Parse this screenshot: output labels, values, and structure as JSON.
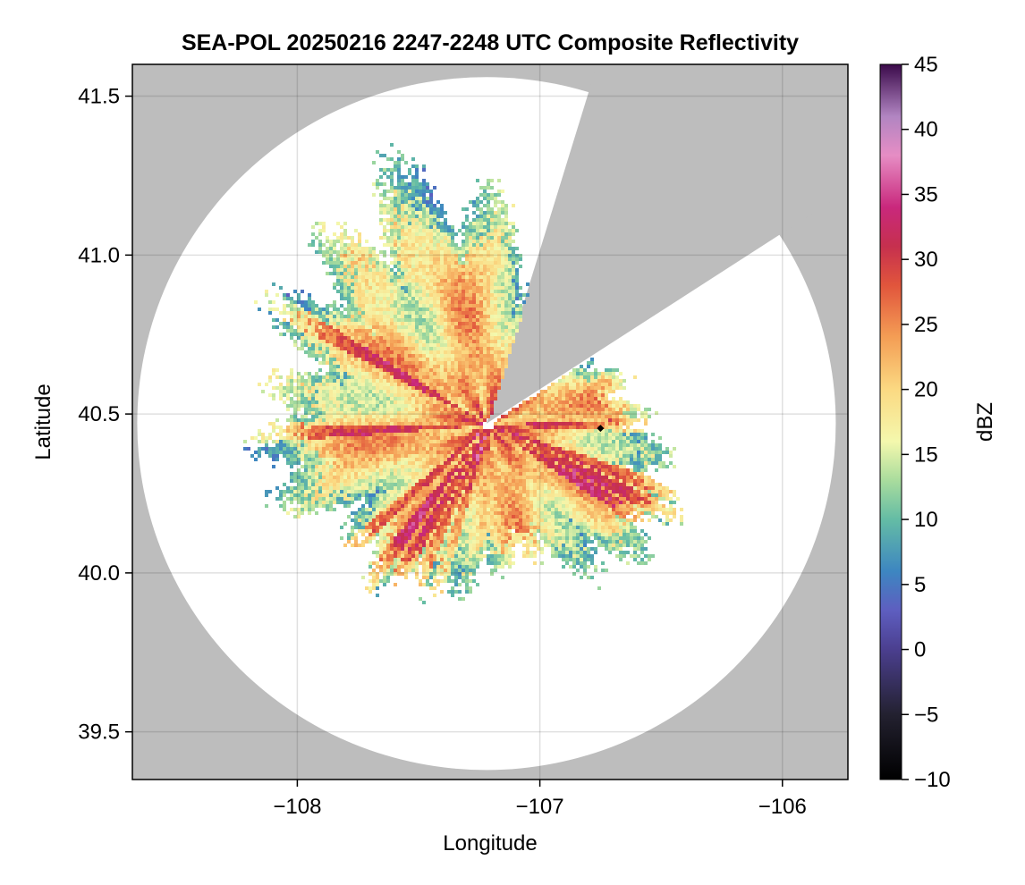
{
  "chart_data": {
    "type": "heatmap",
    "title": "SEA-POL 20250216 2247-2248 UTC Composite Reflectivity",
    "xlabel": "Longitude",
    "ylabel": "Latitude",
    "xlim": [
      -108.68,
      -105.73
    ],
    "ylim": [
      39.35,
      41.6
    ],
    "x_ticks": [
      -108,
      -107,
      -106
    ],
    "x_tick_labels": [
      "−108",
      "−107",
      "−106"
    ],
    "y_ticks": [
      39.5,
      40.0,
      40.5,
      41.0,
      41.5
    ],
    "y_tick_labels": [
      "39.5",
      "40.0",
      "40.5",
      "41.0",
      "41.5"
    ],
    "grid": true,
    "background_color": "#bdbdbd",
    "radar_center": {
      "lon": -107.22,
      "lat": 40.47
    },
    "radar_range_deg": {
      "lon": 1.44,
      "lat": 1.09
    },
    "blocked_sectors_deg_from_north": [
      [
        17,
        57
      ]
    ],
    "marker": {
      "lon": -106.75,
      "lat": 40.455,
      "color": "#000000"
    },
    "colorbar": {
      "label": "dBZ",
      "min": -10,
      "max": 45,
      "ticks": [
        -10,
        -5,
        0,
        5,
        10,
        15,
        20,
        25,
        30,
        35,
        40,
        45
      ],
      "tick_labels": [
        "−10",
        "−5",
        "0",
        "5",
        "10",
        "15",
        "20",
        "25",
        "30",
        "35",
        "40",
        "45"
      ],
      "colormap_stops": [
        {
          "value": -10,
          "color": "#000000"
        },
        {
          "value": -5,
          "color": "#232130"
        },
        {
          "value": 0,
          "color": "#4b3f8f"
        },
        {
          "value": 3,
          "color": "#5e5ec0"
        },
        {
          "value": 6,
          "color": "#3d86c1"
        },
        {
          "value": 10,
          "color": "#64bca5"
        },
        {
          "value": 13,
          "color": "#a9dc9d"
        },
        {
          "value": 16,
          "color": "#f4f8ad"
        },
        {
          "value": 20,
          "color": "#fbd982"
        },
        {
          "value": 24,
          "color": "#f49e55"
        },
        {
          "value": 28,
          "color": "#e1553c"
        },
        {
          "value": 31,
          "color": "#c6304e"
        },
        {
          "value": 34,
          "color": "#c9287c"
        },
        {
          "value": 38,
          "color": "#e68dc4"
        },
        {
          "value": 41,
          "color": "#b185c2"
        },
        {
          "value": 45,
          "color": "#3b0a4a"
        }
      ]
    }
  }
}
